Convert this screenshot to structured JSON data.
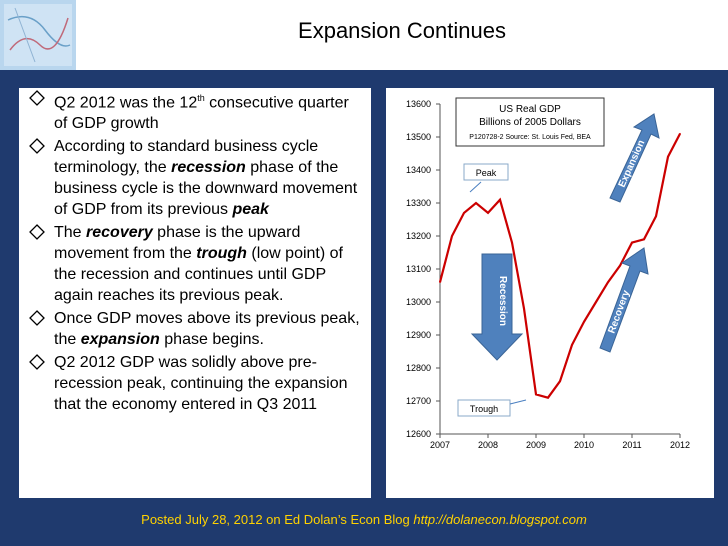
{
  "slide": {
    "title": "Expansion Continues",
    "footer_text": "Posted July 28, 2012 on Ed Dolan’s Econ Blog",
    "footer_url": "http://dolanecon.blogspot.com"
  },
  "bullets": [
    {
      "parts": [
        {
          "t": "Q2 2012 was the 12"
        },
        {
          "t": "th",
          "sup": true
        },
        {
          "t": " consecutive quarter of GDP growth"
        }
      ]
    },
    {
      "parts": [
        {
          "t": "According to standard business cycle terminology, the "
        },
        {
          "t": "recession",
          "em": true
        },
        {
          "t": " phase of the business cycle is the downward movement of GDP from its previous "
        },
        {
          "t": "peak",
          "em": true
        }
      ]
    },
    {
      "parts": [
        {
          "t": "The "
        },
        {
          "t": "recovery",
          "em": true
        },
        {
          "t": " phase is the upward movement from the "
        },
        {
          "t": "trough",
          "em": true
        },
        {
          "t": " (low point) of the recession and continues until GDP again reaches its previous peak."
        }
      ]
    },
    {
      "parts": [
        {
          "t": "Once GDP moves above its previous peak, the "
        },
        {
          "t": "expansion",
          "em": true
        },
        {
          "t": " phase begins."
        }
      ]
    },
    {
      "parts": [
        {
          "t": "Q2 2012 GDP was solidly above pre-recession peak, continuing the expansion that the economy entered in Q3 2011"
        }
      ]
    }
  ],
  "chart_data": {
    "type": "line",
    "title": "US Real GDP",
    "subtitle": "Billions of 2005 Dollars",
    "source": "P120728-2 Source: St. Louis Fed, BEA",
    "x_tick_labels": [
      "2007",
      "2008",
      "2009",
      "2010",
      "2011",
      "2012"
    ],
    "y_tick_labels": [
      "12600",
      "12700",
      "12800",
      "12900",
      "13000",
      "13100",
      "13200",
      "13300",
      "13400",
      "13500",
      "13600"
    ],
    "xlim": [
      2007,
      2012
    ],
    "ylim": [
      12600,
      13600
    ],
    "grid": false,
    "series": [
      {
        "color": "#cc0000",
        "x": [
          2007.0,
          2007.25,
          2007.5,
          2007.75,
          2008.0,
          2008.25,
          2008.5,
          2008.75,
          2009.0,
          2009.25,
          2009.5,
          2009.75,
          2010.0,
          2010.25,
          2010.5,
          2010.75,
          2011.0,
          2011.25,
          2011.5,
          2011.75,
          2012.0
        ],
        "values": [
          13060,
          13200,
          13270,
          13300,
          13270,
          13310,
          13180,
          12980,
          12720,
          12710,
          12760,
          12870,
          12940,
          13000,
          13060,
          13110,
          13180,
          13190,
          13260,
          13440,
          13510
        ]
      }
    ],
    "annotations": [
      {
        "text": "Peak",
        "x": 2008.0,
        "y": 13325
      },
      {
        "text": "Trough",
        "x": 2009.25,
        "y": 12710
      },
      {
        "text": "Recession"
      },
      {
        "text": "Recovery"
      },
      {
        "text": "Expansion"
      }
    ]
  }
}
